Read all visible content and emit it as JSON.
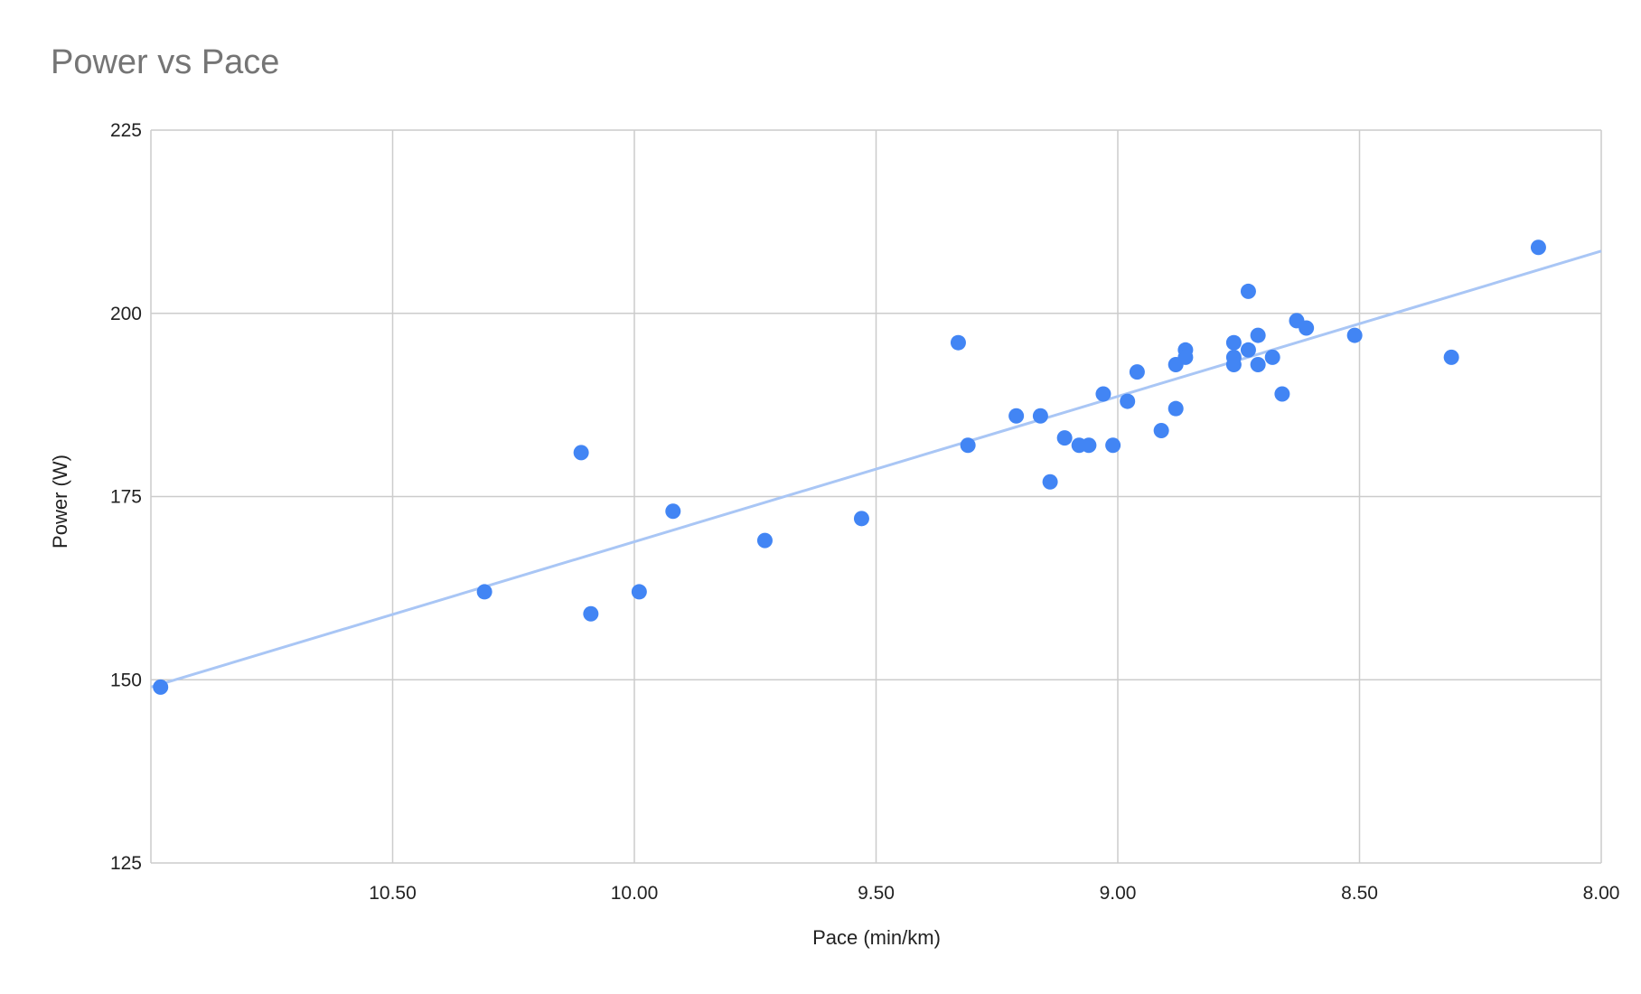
{
  "chart_data": {
    "type": "scatter",
    "title": "Power vs Pace",
    "xlabel": "Pace (min/km)",
    "ylabel": "Power (W)",
    "xlim": [
      11.0,
      8.0
    ],
    "ylim": [
      125,
      225
    ],
    "x_reversed": true,
    "x_ticks": [
      10.5,
      10.0,
      9.5,
      9.0,
      8.5,
      8.0
    ],
    "x_tick_labels": [
      "10.50",
      "10.00",
      "9.50",
      "9.00",
      "8.50",
      "8.00"
    ],
    "y_ticks": [
      125,
      150,
      175,
      200,
      225
    ],
    "y_tick_labels": [
      "125",
      "150",
      "175",
      "200",
      "225"
    ],
    "grid": true,
    "legend": "none",
    "colors": {
      "points": "#4285f4",
      "trendline": "#a9c6f5",
      "grid": "#cccccc",
      "title": "#757575"
    },
    "trendline": {
      "type": "linear",
      "x": [
        11.0,
        8.0
      ],
      "y": [
        149,
        208.5
      ]
    },
    "series": [
      {
        "points": [
          {
            "x": 10.98,
            "y": 149
          },
          {
            "x": 10.31,
            "y": 162
          },
          {
            "x": 10.11,
            "y": 181
          },
          {
            "x": 10.09,
            "y": 159
          },
          {
            "x": 9.99,
            "y": 162
          },
          {
            "x": 9.92,
            "y": 173
          },
          {
            "x": 9.73,
            "y": 169
          },
          {
            "x": 9.53,
            "y": 172
          },
          {
            "x": 9.33,
            "y": 196
          },
          {
            "x": 9.31,
            "y": 182
          },
          {
            "x": 9.21,
            "y": 186
          },
          {
            "x": 9.16,
            "y": 186
          },
          {
            "x": 9.14,
            "y": 177
          },
          {
            "x": 9.11,
            "y": 183
          },
          {
            "x": 9.08,
            "y": 182
          },
          {
            "x": 9.06,
            "y": 182
          },
          {
            "x": 9.03,
            "y": 189
          },
          {
            "x": 9.01,
            "y": 182
          },
          {
            "x": 8.98,
            "y": 188
          },
          {
            "x": 8.96,
            "y": 192
          },
          {
            "x": 8.91,
            "y": 184
          },
          {
            "x": 8.88,
            "y": 193
          },
          {
            "x": 8.88,
            "y": 187
          },
          {
            "x": 8.86,
            "y": 195
          },
          {
            "x": 8.86,
            "y": 194
          },
          {
            "x": 8.76,
            "y": 196
          },
          {
            "x": 8.76,
            "y": 194
          },
          {
            "x": 8.76,
            "y": 193
          },
          {
            "x": 8.73,
            "y": 203
          },
          {
            "x": 8.73,
            "y": 195
          },
          {
            "x": 8.71,
            "y": 197
          },
          {
            "x": 8.71,
            "y": 193
          },
          {
            "x": 8.68,
            "y": 194
          },
          {
            "x": 8.66,
            "y": 189
          },
          {
            "x": 8.63,
            "y": 199
          },
          {
            "x": 8.61,
            "y": 198
          },
          {
            "x": 8.51,
            "y": 197
          },
          {
            "x": 8.31,
            "y": 194
          },
          {
            "x": 8.13,
            "y": 209
          }
        ]
      }
    ]
  }
}
